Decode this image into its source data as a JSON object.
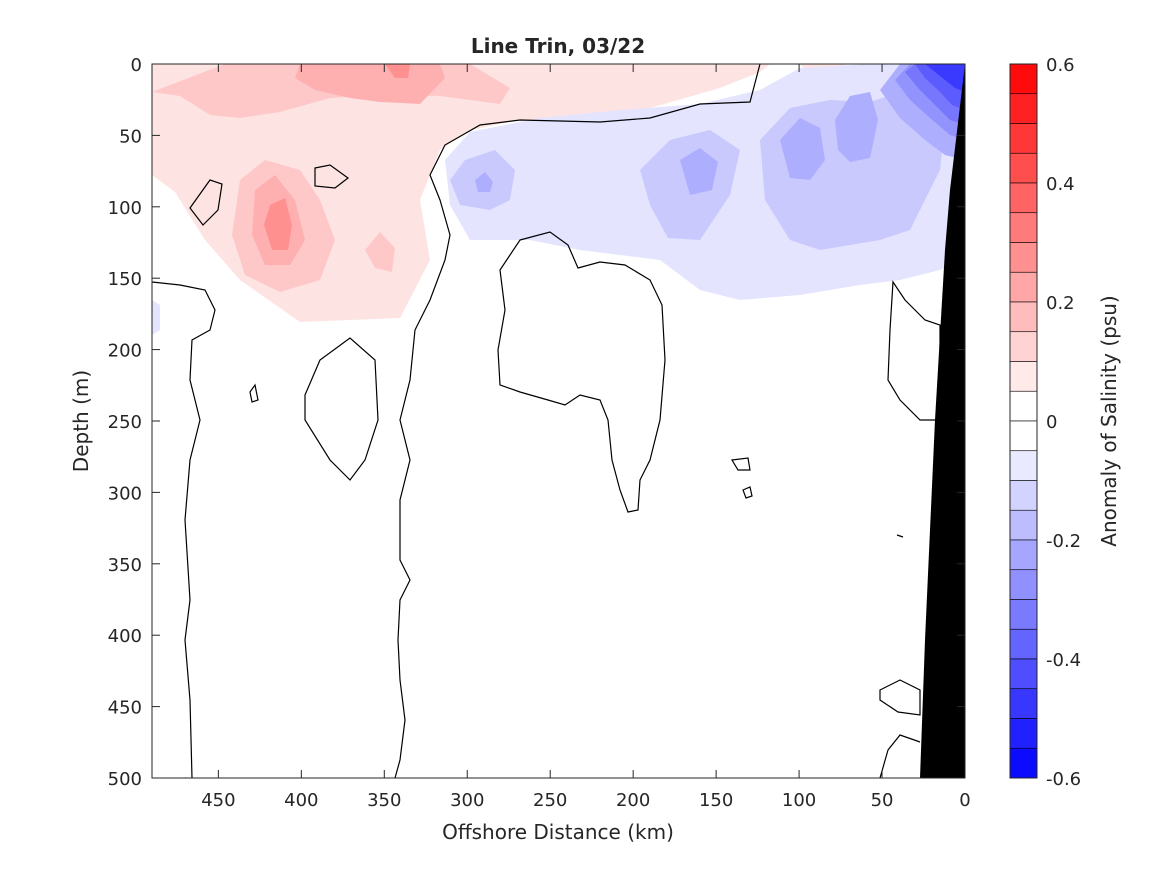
{
  "chart_data": {
    "type": "heatmap",
    "title": "Line Trin, 03/22",
    "xlabel": "Offshore Distance (km)",
    "ylabel": "Depth (m)",
    "xlim": [
      490,
      0
    ],
    "ylim": [
      0,
      500
    ],
    "x_ticks": [
      450,
      400,
      350,
      300,
      250,
      200,
      150,
      100,
      50,
      0
    ],
    "y_ticks": [
      0,
      50,
      100,
      150,
      200,
      250,
      300,
      350,
      400,
      450,
      500
    ],
    "x_tick_labels": [
      "450",
      "400",
      "350",
      "300",
      "250",
      "200",
      "150",
      "100",
      "50",
      "0"
    ],
    "y_tick_labels": [
      "0",
      "50",
      "100",
      "150",
      "200",
      "250",
      "300",
      "350",
      "400",
      "450",
      "500"
    ],
    "colorbar": {
      "label": "Anomaly of Salinity (psu)",
      "range": [
        -0.6,
        0.6
      ],
      "step": 0.05,
      "tick_values": [
        0.6,
        0.4,
        0.2,
        0,
        -0.2,
        -0.4,
        -0.6
      ],
      "tick_labels": [
        "0.6",
        "0.4",
        "0.2",
        "0",
        "-0.2",
        "-0.4",
        "-0.6"
      ]
    },
    "colors": {
      "positive_max": "#ff0000",
      "zero": "#ffffff",
      "negative_max": "#0000ff",
      "bathymetry": "#000000",
      "contour": "#000000"
    },
    "anomaly_features": [
      {
        "distance_km": 340,
        "depth_m": 5,
        "value": 0.2
      },
      {
        "distance_km": 420,
        "depth_m": 110,
        "value": 0.25
      },
      {
        "distance_km": 470,
        "depth_m": 25,
        "value": 0.1
      },
      {
        "distance_km": 290,
        "depth_m": 80,
        "value": -0.15
      },
      {
        "distance_km": 160,
        "depth_m": 75,
        "value": -0.2
      },
      {
        "distance_km": 100,
        "depth_m": 55,
        "value": -0.2
      },
      {
        "distance_km": 60,
        "depth_m": 40,
        "value": -0.2
      },
      {
        "distance_km": 10,
        "depth_m": 15,
        "value": -0.55
      }
    ],
    "bathymetry_edge": [
      {
        "distance_km": 0,
        "depth_m": 0
      },
      {
        "distance_km": 10,
        "depth_m": 90
      },
      {
        "distance_km": 20,
        "depth_m": 250
      },
      {
        "distance_km": 28,
        "depth_m": 500
      }
    ]
  }
}
